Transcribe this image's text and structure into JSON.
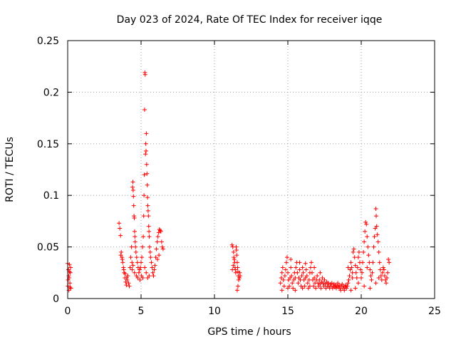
{
  "chart_data": {
    "type": "scatter",
    "title": "Day 023 of 2024, Rate Of TEC Index for receiver iqqe",
    "xlabel": "GPS time / hours",
    "ylabel": "ROTI / TECUs",
    "xlim": [
      0,
      25
    ],
    "ylim": [
      0,
      0.25
    ],
    "x_ticks": [
      0,
      5,
      10,
      15,
      20,
      25
    ],
    "y_ticks": [
      0,
      0.05,
      0.1,
      0.15,
      0.2,
      0.25
    ],
    "x_tick_labels": [
      "0",
      "5",
      "10",
      "15",
      "20",
      "25"
    ],
    "y_tick_labels": [
      "0",
      "0.05",
      "0.1",
      "0.15",
      "0.2",
      "0.25"
    ],
    "grid": true,
    "marker": "+",
    "color": "#ff0000",
    "series": [
      {
        "points": [
          [
            0.0,
            0.034
          ],
          [
            0.02,
            0.012
          ],
          [
            0.05,
            0.028
          ],
          [
            0.08,
            0.008
          ],
          [
            0.1,
            0.02
          ],
          [
            0.12,
            0.033
          ],
          [
            0.15,
            0.015
          ],
          [
            0.18,
            0.025
          ],
          [
            0.2,
            0.03
          ],
          [
            0.22,
            0.01
          ],
          [
            0.03,
            0.018
          ],
          [
            0.07,
            0.022
          ],
          [
            0.13,
            0.026
          ],
          [
            0.16,
            0.011
          ],
          [
            3.5,
            0.073
          ],
          [
            3.55,
            0.068
          ],
          [
            3.6,
            0.061
          ],
          [
            3.65,
            0.045
          ],
          [
            3.7,
            0.04
          ],
          [
            3.75,
            0.035
          ],
          [
            3.8,
            0.03
          ],
          [
            3.85,
            0.025
          ],
          [
            3.9,
            0.02
          ],
          [
            3.95,
            0.016
          ],
          [
            4.0,
            0.013
          ],
          [
            4.05,
            0.018
          ],
          [
            4.1,
            0.022
          ],
          [
            4.15,
            0.015
          ],
          [
            4.2,
            0.012
          ],
          [
            3.62,
            0.042
          ],
          [
            3.72,
            0.038
          ],
          [
            3.82,
            0.028
          ],
          [
            3.92,
            0.024
          ],
          [
            4.02,
            0.02
          ],
          [
            4.25,
            0.03
          ],
          [
            4.3,
            0.04
          ],
          [
            4.35,
            0.05
          ],
          [
            4.38,
            0.035
          ],
          [
            4.4,
            0.028
          ],
          [
            4.42,
            0.108
          ],
          [
            4.44,
            0.113
          ],
          [
            4.46,
            0.105
          ],
          [
            4.48,
            0.099
          ],
          [
            4.5,
            0.09
          ],
          [
            4.52,
            0.08
          ],
          [
            4.54,
            0.078
          ],
          [
            4.56,
            0.065
          ],
          [
            4.58,
            0.06
          ],
          [
            4.6,
            0.055
          ],
          [
            4.62,
            0.05
          ],
          [
            4.65,
            0.045
          ],
          [
            4.7,
            0.04
          ],
          [
            4.75,
            0.035
          ],
          [
            4.8,
            0.03
          ],
          [
            4.45,
            0.032
          ],
          [
            4.55,
            0.025
          ],
          [
            4.68,
            0.022
          ],
          [
            4.78,
            0.02
          ],
          [
            4.85,
            0.025
          ],
          [
            4.9,
            0.028
          ],
          [
            4.95,
            0.03
          ],
          [
            5.0,
            0.035
          ],
          [
            5.05,
            0.04
          ],
          [
            5.1,
            0.05
          ],
          [
            4.92,
            0.018
          ],
          [
            5.02,
            0.022
          ],
          [
            5.12,
            0.02
          ],
          [
            5.15,
            0.06
          ],
          [
            5.18,
            0.08
          ],
          [
            5.2,
            0.1
          ],
          [
            5.22,
            0.12
          ],
          [
            5.24,
            0.183
          ],
          [
            5.26,
            0.219
          ],
          [
            5.28,
            0.217
          ],
          [
            5.3,
            0.14
          ],
          [
            5.32,
            0.15
          ],
          [
            5.34,
            0.143
          ],
          [
            5.36,
            0.16
          ],
          [
            5.38,
            0.13
          ],
          [
            5.4,
            0.121
          ],
          [
            5.42,
            0.11
          ],
          [
            5.44,
            0.098
          ],
          [
            5.46,
            0.09
          ],
          [
            5.48,
            0.085
          ],
          [
            5.5,
            0.08
          ],
          [
            5.52,
            0.07
          ],
          [
            5.54,
            0.065
          ],
          [
            5.56,
            0.06
          ],
          [
            5.58,
            0.05
          ],
          [
            5.25,
            0.03
          ],
          [
            5.35,
            0.025
          ],
          [
            5.45,
            0.02
          ],
          [
            5.55,
            0.022
          ],
          [
            5.62,
            0.045
          ],
          [
            5.65,
            0.04
          ],
          [
            5.7,
            0.035
          ],
          [
            5.75,
            0.03
          ],
          [
            5.8,
            0.025
          ],
          [
            5.85,
            0.022
          ],
          [
            5.9,
            0.028
          ],
          [
            5.95,
            0.032
          ],
          [
            6.0,
            0.04
          ],
          [
            6.05,
            0.048
          ],
          [
            6.1,
            0.055
          ],
          [
            6.15,
            0.06
          ],
          [
            6.2,
            0.064
          ],
          [
            6.25,
            0.067
          ],
          [
            6.3,
            0.066
          ],
          [
            6.35,
            0.065
          ],
          [
            6.4,
            0.055
          ],
          [
            6.45,
            0.05
          ],
          [
            6.5,
            0.048
          ],
          [
            6.12,
            0.038
          ],
          [
            6.22,
            0.042
          ],
          [
            11.2,
            0.052
          ],
          [
            11.25,
            0.05
          ],
          [
            11.3,
            0.045
          ],
          [
            11.32,
            0.04
          ],
          [
            11.35,
            0.038
          ],
          [
            11.38,
            0.035
          ],
          [
            11.4,
            0.03
          ],
          [
            11.42,
            0.028
          ],
          [
            11.45,
            0.025
          ],
          [
            11.48,
            0.05
          ],
          [
            11.5,
            0.047
          ],
          [
            11.52,
            0.042
          ],
          [
            11.55,
            0.035
          ],
          [
            11.58,
            0.03
          ],
          [
            11.6,
            0.026
          ],
          [
            11.62,
            0.022
          ],
          [
            11.65,
            0.018
          ],
          [
            11.7,
            0.02
          ],
          [
            11.72,
            0.025
          ],
          [
            11.75,
            0.022
          ],
          [
            11.6,
            0.012
          ],
          [
            11.55,
            0.008
          ],
          [
            11.28,
            0.032
          ],
          [
            11.22,
            0.028
          ],
          [
            14.5,
            0.015
          ],
          [
            14.55,
            0.02
          ],
          [
            14.6,
            0.025
          ],
          [
            14.65,
            0.03
          ],
          [
            14.7,
            0.018
          ],
          [
            14.75,
            0.012
          ],
          [
            14.8,
            0.022
          ],
          [
            14.85,
            0.028
          ],
          [
            14.9,
            0.035
          ],
          [
            14.95,
            0.04
          ],
          [
            15.0,
            0.025
          ],
          [
            15.05,
            0.018
          ],
          [
            15.1,
            0.012
          ],
          [
            15.15,
            0.02
          ],
          [
            15.2,
            0.03
          ],
          [
            15.25,
            0.022
          ],
          [
            15.3,
            0.015
          ],
          [
            15.35,
            0.01
          ],
          [
            15.4,
            0.018
          ],
          [
            15.45,
            0.025
          ],
          [
            15.5,
            0.02
          ],
          [
            15.55,
            0.03
          ],
          [
            15.6,
            0.035
          ],
          [
            15.65,
            0.025
          ],
          [
            15.7,
            0.015
          ],
          [
            15.75,
            0.02
          ],
          [
            15.8,
            0.028
          ],
          [
            15.85,
            0.018
          ],
          [
            15.9,
            0.012
          ],
          [
            15.95,
            0.022
          ],
          [
            16.0,
            0.03
          ],
          [
            16.05,
            0.025
          ],
          [
            16.1,
            0.018
          ],
          [
            16.15,
            0.012
          ],
          [
            16.2,
            0.02
          ],
          [
            16.25,
            0.028
          ],
          [
            16.3,
            0.022
          ],
          [
            16.35,
            0.015
          ],
          [
            16.4,
            0.01
          ],
          [
            16.45,
            0.018
          ],
          [
            16.5,
            0.025
          ],
          [
            16.55,
            0.03
          ],
          [
            16.6,
            0.035
          ],
          [
            16.65,
            0.025
          ],
          [
            16.7,
            0.018
          ],
          [
            16.75,
            0.012
          ],
          [
            16.8,
            0.02
          ],
          [
            16.85,
            0.015
          ],
          [
            16.9,
            0.01
          ],
          [
            16.95,
            0.018
          ],
          [
            17.0,
            0.022
          ],
          [
            17.05,
            0.015
          ],
          [
            17.1,
            0.012
          ],
          [
            17.15,
            0.018
          ],
          [
            17.2,
            0.014
          ],
          [
            17.25,
            0.01
          ],
          [
            17.3,
            0.016
          ],
          [
            17.35,
            0.02
          ],
          [
            17.4,
            0.015
          ],
          [
            17.45,
            0.012
          ],
          [
            17.5,
            0.018
          ],
          [
            17.55,
            0.014
          ],
          [
            17.6,
            0.01
          ],
          [
            17.65,
            0.016
          ],
          [
            17.7,
            0.012
          ],
          [
            17.75,
            0.015
          ],
          [
            17.8,
            0.012
          ],
          [
            17.85,
            0.01
          ],
          [
            17.9,
            0.014
          ],
          [
            17.95,
            0.012
          ],
          [
            18.0,
            0.015
          ],
          [
            18.05,
            0.01
          ],
          [
            18.1,
            0.012
          ],
          [
            18.15,
            0.014
          ],
          [
            18.2,
            0.011
          ],
          [
            18.25,
            0.013
          ],
          [
            18.3,
            0.01
          ],
          [
            18.35,
            0.012
          ],
          [
            18.4,
            0.015
          ],
          [
            18.45,
            0.011
          ],
          [
            18.5,
            0.013
          ],
          [
            18.55,
            0.01
          ],
          [
            18.6,
            0.008
          ],
          [
            18.65,
            0.012
          ],
          [
            18.7,
            0.014
          ],
          [
            18.75,
            0.01
          ],
          [
            18.8,
            0.012
          ],
          [
            18.85,
            0.008
          ],
          [
            18.9,
            0.011
          ],
          [
            18.95,
            0.013
          ],
          [
            19.0,
            0.01
          ],
          [
            19.05,
            0.012
          ],
          [
            19.1,
            0.015
          ],
          [
            19.15,
            0.018
          ],
          [
            19.2,
            0.022
          ],
          [
            19.25,
            0.028
          ],
          [
            19.3,
            0.035
          ],
          [
            19.35,
            0.03
          ],
          [
            19.4,
            0.025
          ],
          [
            19.45,
            0.045
          ],
          [
            19.5,
            0.048
          ],
          [
            19.55,
            0.04
          ],
          [
            19.6,
            0.032
          ],
          [
            19.65,
            0.025
          ],
          [
            19.7,
            0.02
          ],
          [
            19.75,
            0.03
          ],
          [
            19.8,
            0.04
          ],
          [
            19.85,
            0.045
          ],
          [
            19.9,
            0.035
          ],
          [
            19.95,
            0.028
          ],
          [
            20.0,
            0.02
          ],
          [
            20.05,
            0.025
          ],
          [
            20.1,
            0.035
          ],
          [
            20.15,
            0.045
          ],
          [
            20.2,
            0.055
          ],
          [
            20.25,
            0.065
          ],
          [
            20.3,
            0.074
          ],
          [
            20.35,
            0.072
          ],
          [
            20.4,
            0.06
          ],
          [
            20.45,
            0.05
          ],
          [
            20.5,
            0.042
          ],
          [
            20.55,
            0.035
          ],
          [
            20.6,
            0.028
          ],
          [
            20.65,
            0.022
          ],
          [
            20.7,
            0.018
          ],
          [
            20.75,
            0.025
          ],
          [
            20.8,
            0.035
          ],
          [
            20.85,
            0.05
          ],
          [
            20.9,
            0.06
          ],
          [
            20.95,
            0.068
          ],
          [
            21.0,
            0.087
          ],
          [
            21.02,
            0.08
          ],
          [
            21.05,
            0.07
          ],
          [
            21.1,
            0.062
          ],
          [
            21.15,
            0.055
          ],
          [
            21.2,
            0.045
          ],
          [
            21.25,
            0.035
          ],
          [
            21.3,
            0.028
          ],
          [
            21.35,
            0.022
          ],
          [
            21.4,
            0.018
          ],
          [
            21.45,
            0.025
          ],
          [
            21.5,
            0.03
          ],
          [
            21.55,
            0.028
          ],
          [
            21.6,
            0.022
          ],
          [
            21.65,
            0.018
          ],
          [
            21.7,
            0.015
          ],
          [
            21.75,
            0.02
          ],
          [
            21.8,
            0.025
          ],
          [
            21.85,
            0.038
          ],
          [
            21.9,
            0.035
          ],
          [
            14.6,
            0.008
          ],
          [
            15.0,
            0.01
          ],
          [
            15.5,
            0.008
          ],
          [
            16.0,
            0.01
          ],
          [
            16.5,
            0.012
          ],
          [
            19.3,
            0.008
          ],
          [
            19.6,
            0.01
          ],
          [
            20.2,
            0.012
          ],
          [
            20.6,
            0.01
          ],
          [
            21.0,
            0.015
          ],
          [
            19.1,
            0.03
          ],
          [
            19.4,
            0.02
          ],
          [
            19.8,
            0.015
          ],
          [
            20.4,
            0.03
          ],
          [
            21.2,
            0.02
          ],
          [
            15.2,
            0.038
          ],
          [
            15.8,
            0.035
          ],
          [
            16.2,
            0.034
          ],
          [
            16.8,
            0.03
          ],
          [
            17.2,
            0.025
          ]
        ]
      }
    ]
  }
}
